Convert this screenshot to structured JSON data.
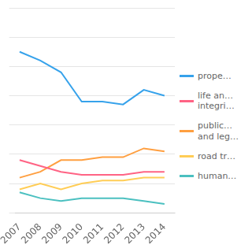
{
  "chart_data": {
    "type": "line",
    "x": [
      2007,
      2008,
      2009,
      2010,
      2011,
      2012,
      2013,
      2014
    ],
    "series": [
      {
        "name": "prope…",
        "values": [
          55,
          52,
          48,
          38,
          38,
          37,
          42,
          40
        ]
      },
      {
        "name": "life an…\nintegri…",
        "values": [
          18,
          16,
          14,
          13,
          13,
          13,
          14,
          14
        ]
      },
      {
        "name": "public…\nand leg…",
        "values": [
          12,
          14,
          18,
          18,
          19,
          19,
          22,
          21
        ]
      },
      {
        "name": "road tr…",
        "values": [
          8,
          10,
          8,
          10,
          11,
          11,
          12,
          12
        ]
      },
      {
        "name": "human…",
        "values": [
          7,
          5,
          4,
          5,
          5,
          5,
          4,
          3
        ]
      }
    ],
    "xlim": [
      2006.8,
      2014.5
    ],
    "xticks": [
      2007,
      2008,
      2009,
      2010,
      2011,
      2012,
      2013,
      2014
    ],
    "ylim": [
      0,
      70
    ],
    "yticks": [
      0,
      10,
      20,
      30,
      40,
      50,
      60,
      70
    ],
    "grid": "y",
    "legend": "right",
    "tick_labels": "x"
  }
}
